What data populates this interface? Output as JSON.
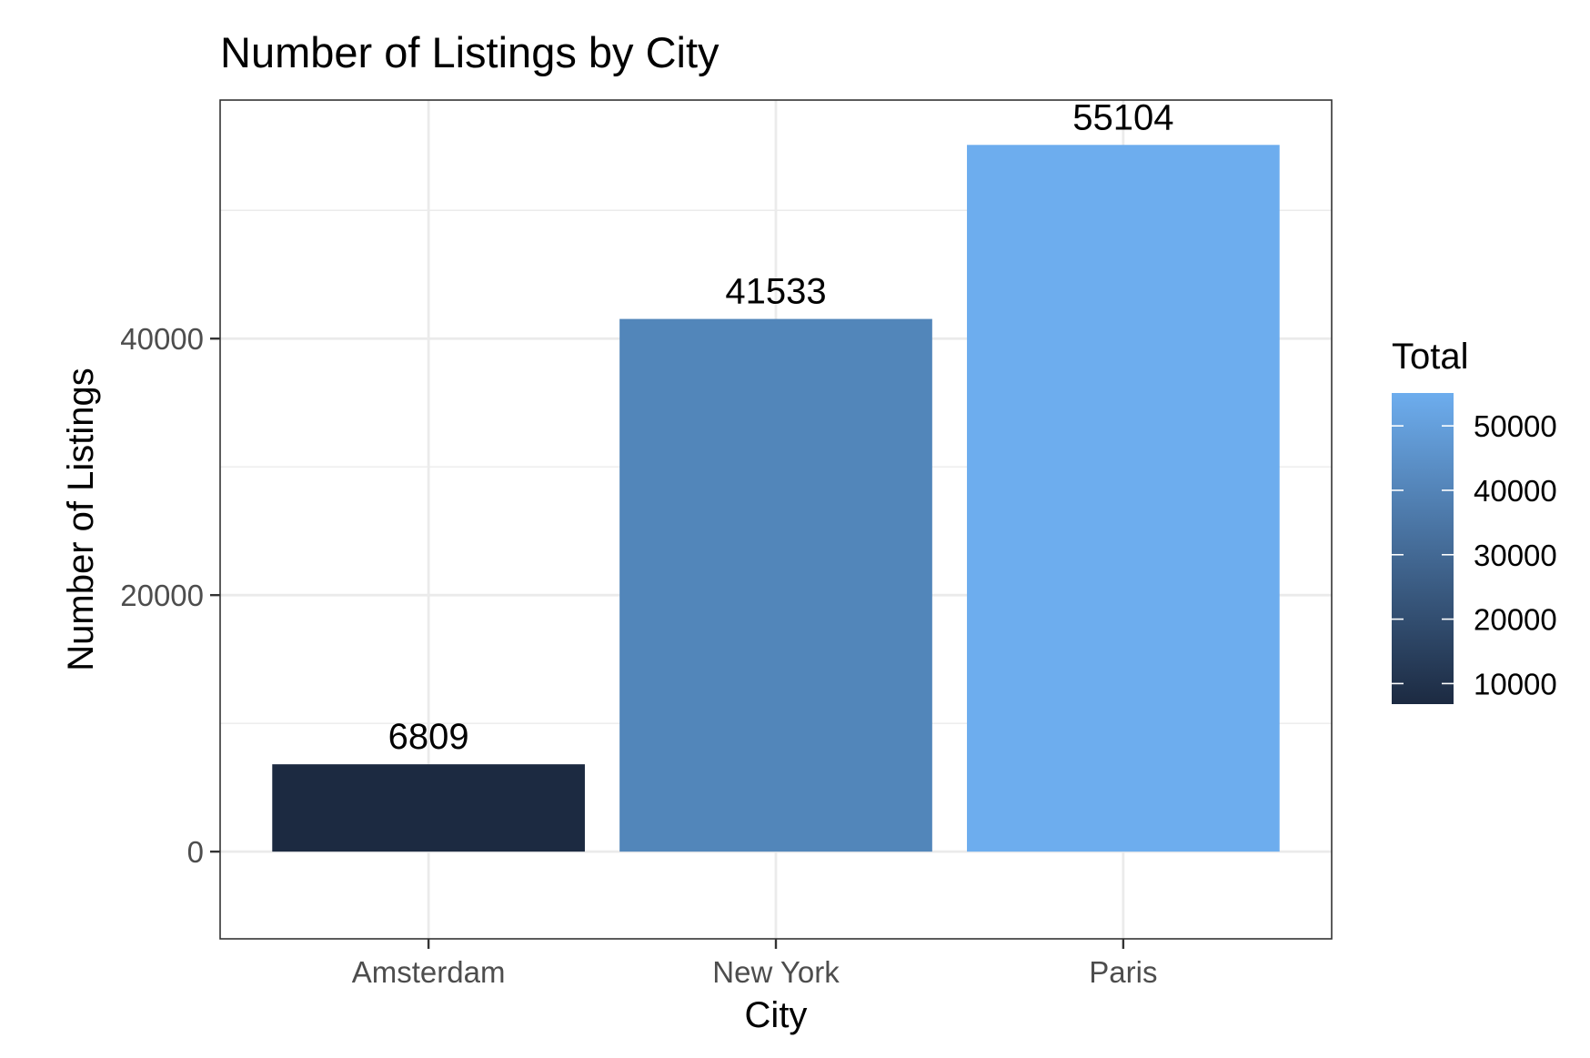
{
  "chart_data": {
    "type": "bar",
    "title": "Number of Listings by City",
    "xlabel": "City",
    "ylabel": "Number of Listings",
    "categories": [
      "Amsterdam",
      "New York",
      "Paris"
    ],
    "values": [
      6809,
      41533,
      55104
    ],
    "data_labels": [
      "6809",
      "41533",
      "55104"
    ],
    "ylim": [
      -6800,
      58600
    ],
    "yticks": [
      0,
      20000,
      40000
    ],
    "ytick_labels": [
      "0",
      "20000",
      "40000"
    ],
    "grid": true,
    "legend": {
      "title": "Total",
      "type": "colorbar",
      "placement": "right",
      "range": [
        6809,
        55104
      ],
      "ticks": [
        10000,
        20000,
        30000,
        40000,
        50000
      ],
      "tick_labels": [
        "10000",
        "20000",
        "30000",
        "40000",
        "50000"
      ],
      "color_low": "#1c2a41",
      "color_high": "#6dadee"
    },
    "bar_colors": [
      "#1c2a41",
      "#5286ba",
      "#6dadee"
    ]
  }
}
